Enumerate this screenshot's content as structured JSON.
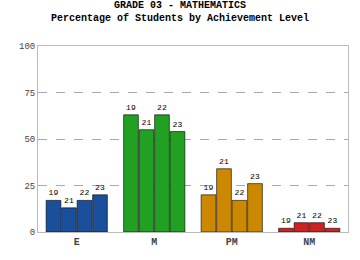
{
  "chart_data": {
    "type": "bar",
    "title": "GRADE 03 - MATHEMATICS",
    "subtitle": "Percentage of Students by Achievement Level",
    "categories": [
      "E",
      "M",
      "PM",
      "NM"
    ],
    "series": [
      {
        "name": "19",
        "values": [
          17,
          63,
          20,
          2
        ],
        "colors": [
          "#1a4f9c",
          "#22a022",
          "#cc8800",
          "#cc2222"
        ]
      },
      {
        "name": "21",
        "values": [
          13,
          55,
          34,
          5
        ],
        "colors": [
          "#1a4f9c",
          "#22a022",
          "#cc8800",
          "#cc2222"
        ]
      },
      {
        "name": "22",
        "values": [
          17,
          63,
          17,
          5
        ],
        "colors": [
          "#1a4f9c",
          "#22a022",
          "#cc8800",
          "#cc2222"
        ]
      },
      {
        "name": "23",
        "values": [
          20,
          54,
          26,
          2
        ],
        "colors": [
          "#1a4f9c",
          "#22a022",
          "#cc8800",
          "#cc2222"
        ]
      }
    ],
    "ylim": [
      0,
      100
    ],
    "yticks": [
      0,
      25,
      50,
      75,
      100
    ],
    "grid": true,
    "legend": false
  }
}
